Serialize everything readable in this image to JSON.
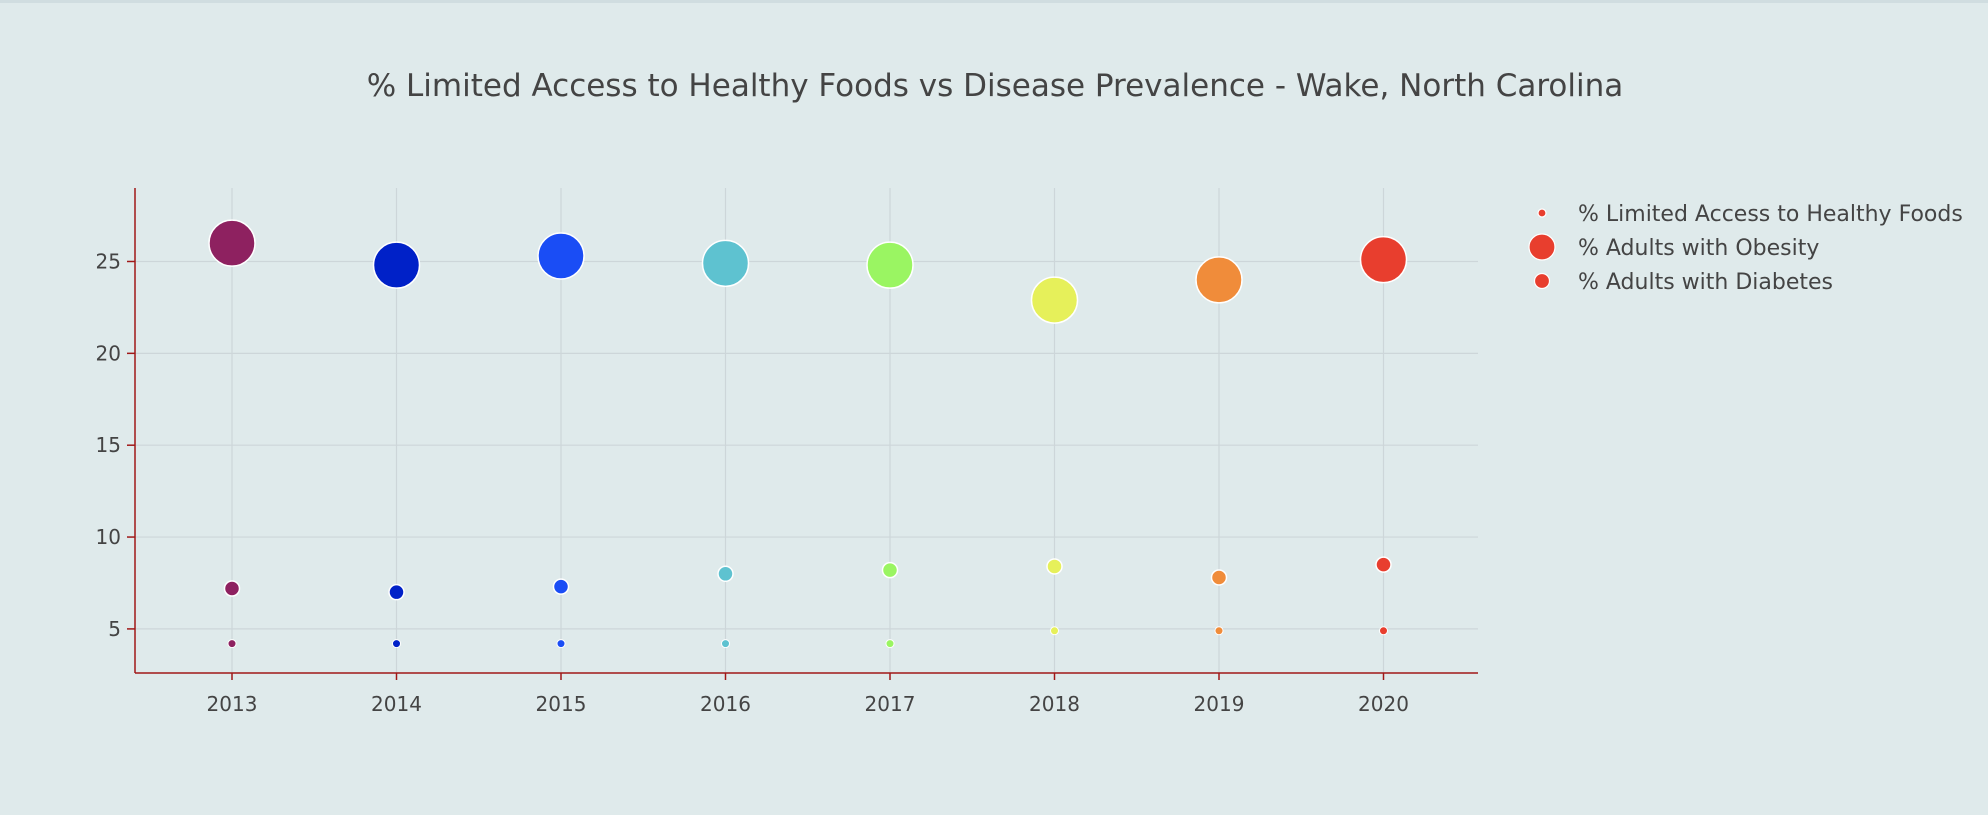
{
  "chart_data": {
    "type": "scatter",
    "title": "% Limited Access to Healthy Foods vs Disease Prevalence - Wake, North Carolina",
    "xlabel": "",
    "ylabel": "",
    "x": [
      "2013",
      "2014",
      "2015",
      "2016",
      "2017",
      "2018",
      "2019",
      "2020"
    ],
    "ylim": [
      2.6,
      29
    ],
    "yticks": [
      5,
      10,
      15,
      20,
      25
    ],
    "grid": true,
    "legend_position": "top-right",
    "point_colors": [
      "#8e2160",
      "#0021c8",
      "#1a4df5",
      "#5ec2d0",
      "#9af562",
      "#e6f05a",
      "#f08c3a",
      "#e83e2e"
    ],
    "legend_color": "#e83e2e",
    "series": [
      {
        "name": "% Limited Access to Healthy Foods",
        "marker": "small",
        "values": [
          4.2,
          4.2,
          4.2,
          4.2,
          4.2,
          4.9,
          4.9,
          4.9
        ]
      },
      {
        "name": "% Adults with Obesity",
        "marker": "large",
        "values": [
          26.0,
          24.8,
          25.3,
          24.9,
          24.8,
          22.9,
          24.0,
          25.1
        ]
      },
      {
        "name": "% Adults with Diabetes",
        "marker": "medium",
        "values": [
          7.2,
          7.0,
          7.3,
          8.0,
          8.2,
          8.4,
          7.8,
          8.5
        ]
      }
    ]
  }
}
